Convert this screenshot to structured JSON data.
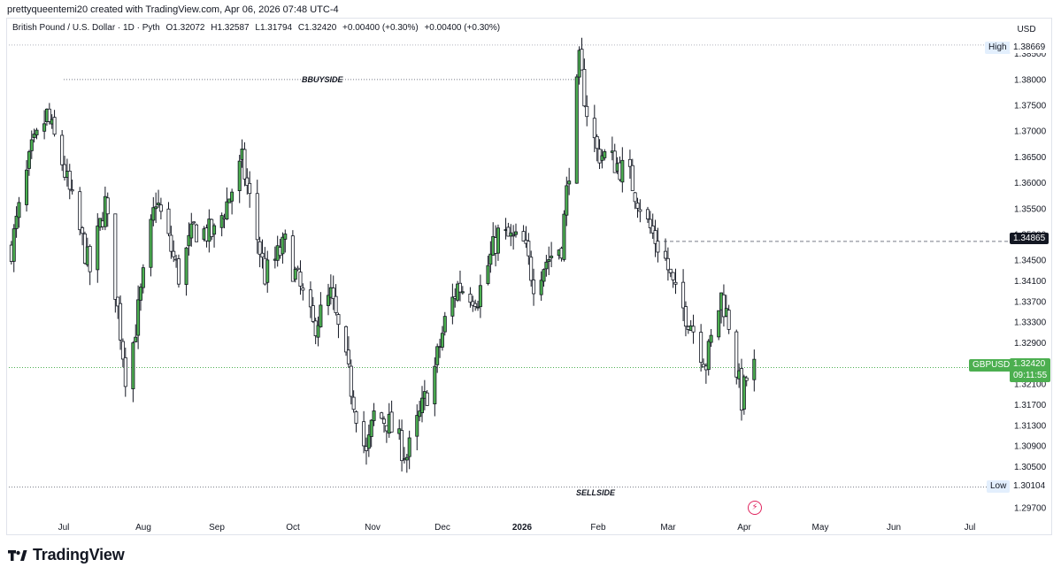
{
  "header": {
    "caption": "prettyqueentemi20 created with TradingView.com, Apr 06, 2026 07:48 UTC-4",
    "symbol": "British Pound / U.S. Dollar · 1D · Pyth",
    "open": "O1.32072",
    "high": "H1.32587",
    "low": "L1.31794",
    "close": "C1.32420",
    "change": "+0.00400 (+0.30%)",
    "change2": "+0.00400 (+0.30%)",
    "currency": "USD"
  },
  "annotations": {
    "buyside_label": "BBUYSIDE",
    "sellside_label": "SELLSIDE",
    "high_label": "High",
    "high_value": "1.38669",
    "low_label": "Low",
    "low_value": "1.30104",
    "level_value": "1.34865",
    "symbol_tag": "GBPUSD",
    "last_price": "1.32420",
    "countdown": "09:11:55"
  },
  "footer": {
    "brand": "TradingView"
  },
  "colors": {
    "bull": "#4caf50",
    "bear": "#ffffff",
    "wick": "#131722",
    "accent": "#4caf50"
  },
  "icons": {
    "lightning": "lightning-icon",
    "logo": "tradingview-logo-icon"
  },
  "chart_data": {
    "type": "candlestick",
    "title": "British Pound / U.S. Dollar · 1D · Pyth",
    "x_ticks": [
      "Jul",
      "Aug",
      "Sep",
      "Oct",
      "Nov",
      "Dec",
      "2026",
      "Feb",
      "Mar",
      "Apr",
      "May",
      "Jun",
      "Jul"
    ],
    "y_ticks": [
      "1.38500",
      "1.38000",
      "1.37500",
      "1.37000",
      "1.36500",
      "1.36000",
      "1.35500",
      "1.35000",
      "1.34500",
      "1.34100",
      "1.33700",
      "1.33300",
      "1.32900",
      "1.32500",
      "1.32100",
      "1.31700",
      "1.31300",
      "1.30900",
      "1.30500",
      "1.29700"
    ],
    "ylim": [
      1.2955,
      1.3918
    ],
    "levels": {
      "buyside": 1.38,
      "sellside": 1.30104,
      "high": 1.38669,
      "low": 1.30104,
      "marked": 1.34865,
      "last": 1.3242
    },
    "anchors": [
      [
        "2025-06-17",
        1.3475
      ],
      [
        "2025-06-25",
        1.366
      ],
      [
        "2025-07-01",
        1.373
      ],
      [
        "2025-07-07",
        1.364
      ],
      [
        "2025-07-11",
        1.356
      ],
      [
        "2025-07-18",
        1.343
      ],
      [
        "2025-07-24",
        1.356
      ],
      [
        "2025-08-01",
        1.323
      ],
      [
        "2025-08-04",
        1.329
      ],
      [
        "2025-08-13",
        1.357
      ],
      [
        "2025-08-22",
        1.342
      ],
      [
        "2025-08-28",
        1.351
      ],
      [
        "2025-09-05",
        1.35
      ],
      [
        "2025-09-10",
        1.356
      ],
      [
        "2025-09-16",
        1.364
      ],
      [
        "2025-09-25",
        1.342
      ],
      [
        "2025-10-03",
        1.348
      ],
      [
        "2025-10-14",
        1.332
      ],
      [
        "2025-10-21",
        1.338
      ],
      [
        "2025-11-04",
        1.307
      ],
      [
        "2025-11-07",
        1.315
      ],
      [
        "2025-11-12",
        1.314
      ],
      [
        "2025-11-20",
        1.307
      ],
      [
        "2025-12-01",
        1.324
      ],
      [
        "2025-12-05",
        1.333
      ],
      [
        "2025-12-10",
        1.34
      ],
      [
        "2025-12-18",
        1.338
      ],
      [
        "2025-12-26",
        1.35
      ],
      [
        "2026-01-05",
        1.348
      ],
      [
        "2026-01-09",
        1.341
      ],
      [
        "2026-01-14",
        1.345
      ],
      [
        "2026-01-20",
        1.348
      ],
      [
        "2026-01-27",
        1.383
      ],
      [
        "2026-01-30",
        1.374
      ],
      [
        "2026-02-03",
        1.366
      ],
      [
        "2026-02-10",
        1.364
      ],
      [
        "2026-02-16",
        1.361
      ],
      [
        "2026-02-23",
        1.352
      ],
      [
        "2026-03-02",
        1.345
      ],
      [
        "2026-03-06",
        1.338
      ],
      [
        "2026-03-12",
        1.333
      ],
      [
        "2026-03-18",
        1.325
      ],
      [
        "2026-03-24",
        1.338
      ],
      [
        "2026-03-27",
        1.333
      ],
      [
        "2026-04-01",
        1.318
      ],
      [
        "2026-04-03",
        1.322
      ],
      [
        "2026-04-06",
        1.3242
      ]
    ]
  }
}
